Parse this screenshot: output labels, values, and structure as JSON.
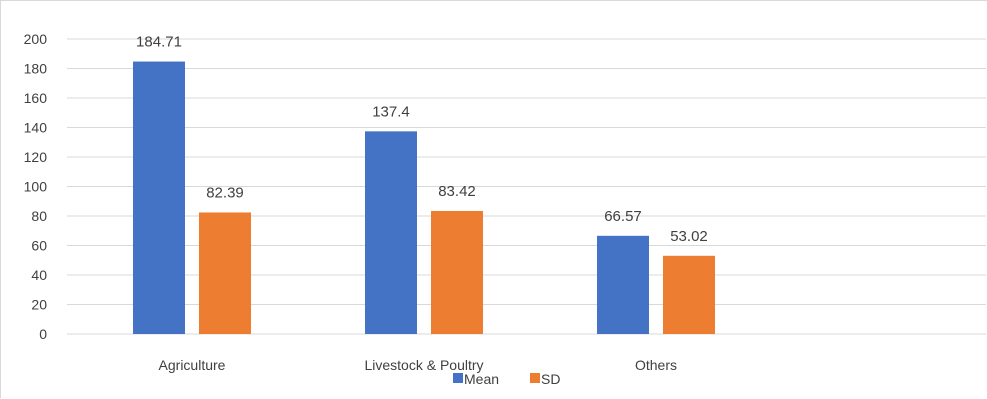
{
  "chart_data": {
    "type": "bar",
    "categories": [
      "Agriculture",
      "Livestock & Poultry",
      "Others"
    ],
    "series": [
      {
        "name": "Mean",
        "values": [
          184.71,
          137.4,
          66.57
        ],
        "labels": [
          "184.71",
          "137.4",
          "66.57"
        ],
        "color": "#4472C4"
      },
      {
        "name": "SD",
        "values": [
          82.39,
          83.42,
          53.02
        ],
        "labels": [
          "82.39",
          "83.42",
          "53.02"
        ],
        "color": "#ED7D31"
      }
    ],
    "ylim": [
      0,
      200
    ],
    "yticks": [
      "0",
      "20",
      "40",
      "60",
      "80",
      "100",
      "120",
      "140",
      "160",
      "180",
      "200"
    ],
    "grid": true,
    "legend_position": "bottom",
    "title": "",
    "xlabel": "",
    "ylabel": ""
  }
}
